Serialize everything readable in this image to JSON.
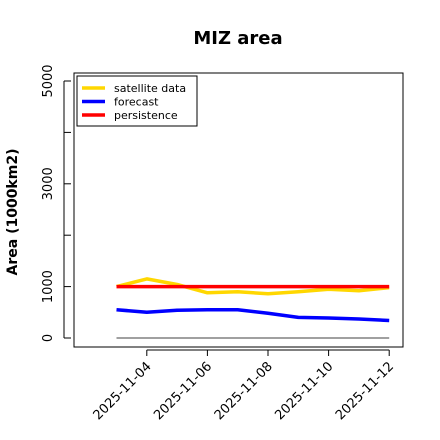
{
  "chart_data": {
    "type": "line",
    "title": "MIZ area",
    "xlabel": "",
    "ylabel": "Area (1000km2)",
    "x": [
      "2025-11-03",
      "2025-11-04",
      "2025-11-05",
      "2025-11-06",
      "2025-11-07",
      "2025-11-08",
      "2025-11-09",
      "2025-11-10",
      "2025-11-11",
      "2025-11-12"
    ],
    "x_tick_labels": [
      "2025-11-04",
      "2025-11-06",
      "2025-11-08",
      "2025-11-10",
      "2025-11-12"
    ],
    "x_tick_colors": [
      "#228B22",
      "#000000",
      "#000000",
      "#000000",
      "#000000"
    ],
    "ylim": [
      -100,
      5300
    ],
    "y_ticks": [
      0,
      1000,
      2000,
      3000,
      4000,
      5000
    ],
    "y_tick_labels": [
      "0",
      "1000",
      "",
      "3000",
      "",
      "5000"
    ],
    "legend_position": "top-left",
    "grid": false,
    "series": [
      {
        "name": "satellite data",
        "color": "#FFD700",
        "values": [
          1000,
          1150,
          1040,
          880,
          900,
          860,
          900,
          950,
          920,
          980
        ]
      },
      {
        "name": "forecast",
        "color": "#0000FF",
        "values": [
          550,
          500,
          540,
          550,
          550,
          480,
          400,
          390,
          370,
          340
        ]
      },
      {
        "name": "persistence",
        "color": "#FF0000",
        "values": [
          1000,
          1000,
          1000,
          1000,
          1000,
          1000,
          1000,
          1000,
          1000,
          1000
        ]
      }
    ],
    "reference_line": {
      "value": 0,
      "color": "#808080"
    }
  }
}
